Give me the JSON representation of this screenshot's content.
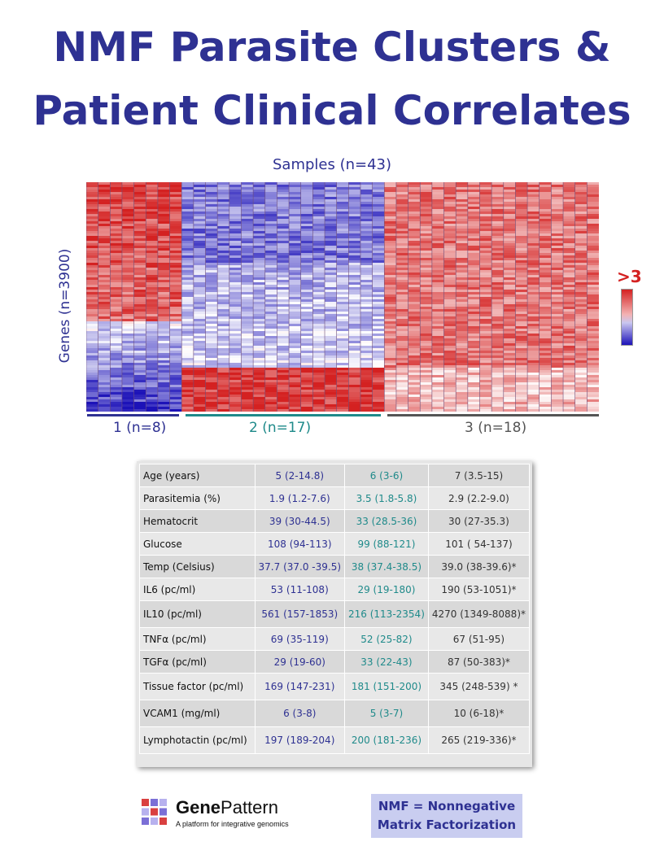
{
  "title_line1": "NMF Parasite Clusters &",
  "title_line2": "Patient Clinical Correlates",
  "chart_data": {
    "type": "heatmap",
    "xlabel": "Samples (n=43)",
    "ylabel": "Genes (n=3900)",
    "scale_label": ">3",
    "groups": [
      {
        "label": "1 (n=8)",
        "n": 8,
        "color": "#2e3192"
      },
      {
        "label": "2 (n=17)",
        "n": 17,
        "color": "#1f8a8a"
      },
      {
        "label": "3  (n=18)",
        "n": 18,
        "color": "#555555"
      }
    ],
    "colors": {
      "high": "#d42121",
      "low": "#1c12b8",
      "mid": "#ffffff"
    }
  },
  "table": {
    "rows": [
      [
        "Age (years)",
        "5  (2-14.8)",
        "6 (3-6)",
        "7 (3.5-15)"
      ],
      [
        "Parasitemia (%)",
        "1.9 (1.2-7.6)",
        "3.5 (1.8-5.8)",
        "2.9 (2.2-9.0)"
      ],
      [
        "Hematocrit",
        "39 (30-44.5)",
        "33 (28.5-36)",
        "30 (27-35.3)"
      ],
      [
        "Glucose",
        "108 (94-113)",
        "99 (88-121)",
        "101 ( 54-137)"
      ],
      [
        "Temp (Celsius)",
        "37.7 (37.0 -39.5)",
        "38 (37.4-38.5)",
        "39.0 (38-39.6)*"
      ],
      [
        "IL6 (pc/ml)",
        "53 (11-108)",
        "29 (19-180)",
        "190 (53-1051)*"
      ],
      [
        "IL10 (pc/ml)",
        "561 (157-1853)",
        "216 (113-2354)",
        "4270 (1349-8088)*"
      ],
      [
        "TNFα (pc/ml)",
        "69 (35-119)",
        "52 (25-82)",
        "67 (51-95)"
      ],
      [
        "TGFα (pc/ml)",
        "29 (19-60)",
        "33 (22-43)",
        "87 (50-383)*"
      ],
      [
        "Tissue factor (pc/ml)",
        "169 (147-231)",
        "181 (151-200)",
        "345 (248-539) *"
      ],
      [
        "VCAM1 (mg/ml)",
        "6 (3-8)",
        "5 (3-7)",
        "10 (6-18)*"
      ],
      [
        "Lymphotactin (pc/ml)",
        "197 (189-204)",
        "200 (181-236)",
        "265 (219-336)*"
      ]
    ]
  },
  "logo": {
    "name_bold": "Gene",
    "name_light": "Pattern",
    "tagline": "A platform for integrative genomics"
  },
  "note_line1": "NMF = Nonnegative",
  "note_line2": "Matrix Factorization"
}
